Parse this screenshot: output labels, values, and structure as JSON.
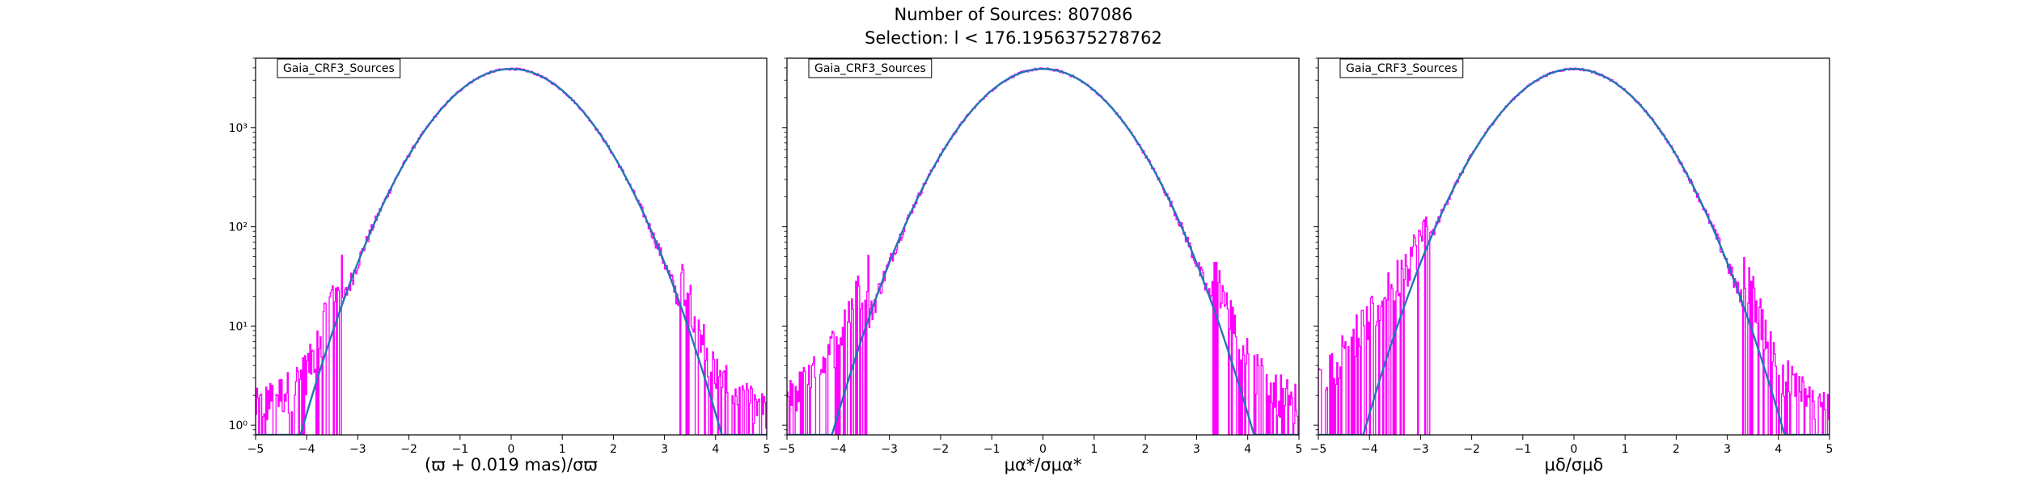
{
  "figure": {
    "title_line1": "Number of Sources: 807086",
    "title_line2": "Selection: l < 176.1956375278762"
  },
  "chart_data": [
    {
      "type": "line",
      "legend": "Gaia_CRF3_Sources",
      "legend_placement": "upper-left",
      "xlabel": "(ϖ + 0.019 mas)/σϖ",
      "ylabel": "",
      "xlim": [
        -5,
        5
      ],
      "ylim": [
        0.8,
        5000
      ],
      "yscale": "log",
      "xticks": [
        "-5",
        "-4",
        "-3",
        "-2",
        "-1",
        "0",
        "1",
        "2",
        "3",
        "4",
        "5"
      ],
      "yticks": [
        "10⁰",
        "10¹",
        "10²",
        "10³"
      ],
      "grid": false,
      "peak_count": 3900,
      "histogram_color": "#ff00ff",
      "curve_color": "#1f77b4",
      "tail_low": [
        [
          -5,
          1.5
        ],
        [
          -4.7,
          1.8
        ],
        [
          -4.4,
          2.2
        ],
        [
          -4.1,
          3
        ],
        [
          -3.9,
          4.5
        ],
        [
          -3.7,
          9
        ],
        [
          -3.5,
          20
        ],
        [
          -3.3,
          35
        ]
      ],
      "tail_high": [
        [
          3.3,
          35
        ],
        [
          3.5,
          20
        ],
        [
          3.7,
          9
        ],
        [
          3.9,
          4.5
        ],
        [
          4.1,
          3
        ],
        [
          4.4,
          2
        ],
        [
          4.7,
          1.6
        ],
        [
          5,
          1.3
        ]
      ]
    },
    {
      "type": "line",
      "legend": "Gaia_CRF3_Sources",
      "legend_placement": "upper-left",
      "xlabel": "μα*/σμα*",
      "ylabel": "",
      "xlim": [
        -5,
        5
      ],
      "ylim": [
        0.8,
        5000
      ],
      "yscale": "log",
      "xticks": [
        "-5",
        "-4",
        "-3",
        "-2",
        "-1",
        "0",
        "1",
        "2",
        "3",
        "4",
        "5"
      ],
      "yticks": [
        "10⁰",
        "10¹",
        "10²",
        "10³"
      ],
      "grid": false,
      "peak_count": 3900,
      "histogram_color": "#ff00ff",
      "curve_color": "#1f77b4",
      "tail_low": [
        [
          -5,
          1.8
        ],
        [
          -4.8,
          2.2
        ],
        [
          -4.6,
          2.8
        ],
        [
          -4.4,
          3.5
        ],
        [
          -4.2,
          5
        ],
        [
          -4.0,
          8
        ],
        [
          -3.8,
          14
        ],
        [
          -3.6,
          22
        ],
        [
          -3.4,
          40
        ]
      ],
      "tail_high": [
        [
          3.3,
          40
        ],
        [
          3.5,
          22
        ],
        [
          3.7,
          11
        ],
        [
          3.9,
          6
        ],
        [
          4.1,
          4
        ],
        [
          4.3,
          3
        ],
        [
          4.5,
          2.5
        ],
        [
          4.7,
          2
        ],
        [
          5,
          1.7
        ]
      ]
    },
    {
      "type": "line",
      "legend": "Gaia_CRF3_Sources",
      "legend_placement": "upper-left",
      "xlabel": "μδ/σμδ",
      "ylabel": "",
      "xlim": [
        -5,
        5
      ],
      "ylim": [
        0.8,
        5000
      ],
      "yscale": "log",
      "xticks": [
        "-5",
        "-4",
        "-3",
        "-2",
        "-1",
        "0",
        "1",
        "2",
        "3",
        "4",
        "5"
      ],
      "yticks": [
        "10⁰",
        "10¹",
        "10²",
        "10³"
      ],
      "grid": false,
      "peak_count": 3900,
      "histogram_color": "#ff00ff",
      "curve_color": "#1f77b4",
      "tail_low": [
        [
          -5,
          2.5
        ],
        [
          -4.8,
          3.5
        ],
        [
          -4.6,
          5
        ],
        [
          -4.4,
          7
        ],
        [
          -4.2,
          9
        ],
        [
          -4.0,
          12
        ],
        [
          -3.8,
          17
        ],
        [
          -3.6,
          24
        ],
        [
          -3.4,
          35
        ],
        [
          -3.2,
          50
        ],
        [
          -3.0,
          75
        ],
        [
          -2.8,
          120
        ]
      ],
      "tail_high": [
        [
          3.3,
          40
        ],
        [
          3.5,
          22
        ],
        [
          3.7,
          11
        ],
        [
          3.9,
          5
        ],
        [
          4.1,
          3.5
        ],
        [
          4.3,
          2.5
        ],
        [
          4.5,
          2
        ],
        [
          4.7,
          1.6
        ],
        [
          5,
          1.4
        ]
      ]
    }
  ]
}
